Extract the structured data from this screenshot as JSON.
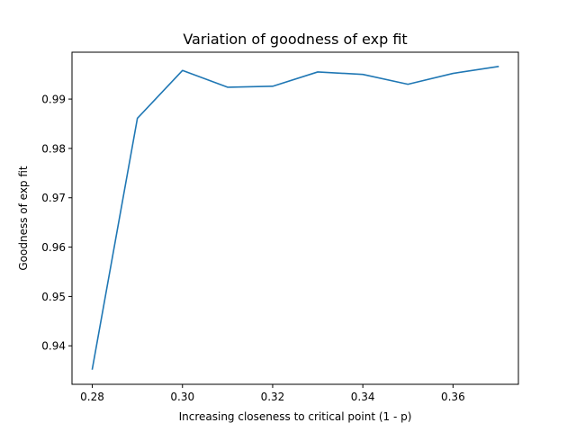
{
  "chart_data": {
    "type": "line",
    "title": "Variation of goodness of exp fit",
    "xlabel": "Increasing closeness to critical point (1 - p)",
    "ylabel": "Goodness of exp fit",
    "xlim": [
      0.2755,
      0.3745
    ],
    "ylim": [
      0.9322,
      0.9995
    ],
    "xticks": [
      0.28,
      0.3,
      0.32,
      0.34,
      0.36
    ],
    "xtick_labels": [
      "0.28",
      "0.30",
      "0.32",
      "0.34",
      "0.36"
    ],
    "yticks": [
      0.94,
      0.95,
      0.96,
      0.97,
      0.98,
      0.99
    ],
    "ytick_labels": [
      "0.94",
      "0.95",
      "0.96",
      "0.97",
      "0.98",
      "0.99"
    ],
    "grid": false,
    "series": [
      {
        "color": "#1f77b4",
        "x": [
          0.28,
          0.29,
          0.3,
          0.31,
          0.32,
          0.33,
          0.34,
          0.35,
          0.36,
          0.37
        ],
        "y": [
          0.9353,
          0.9861,
          0.9958,
          0.9924,
          0.9926,
          0.9955,
          0.995,
          0.993,
          0.9952,
          0.9966
        ]
      }
    ]
  }
}
